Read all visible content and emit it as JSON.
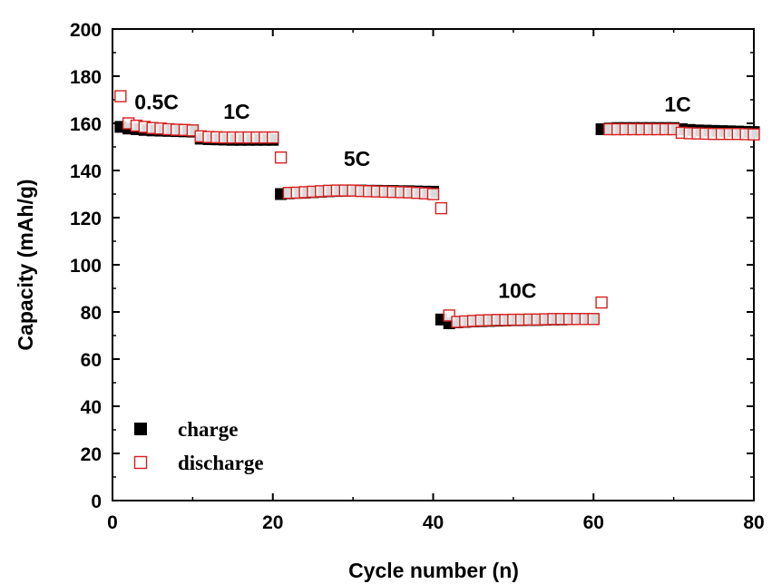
{
  "chart_data": {
    "type": "scatter",
    "xlabel": "Cycle number (n)",
    "ylabel": "Capacity (mAh/g)",
    "xlim": [
      0,
      80
    ],
    "ylim": [
      0,
      200
    ],
    "x_ticks": [
      0,
      20,
      40,
      60,
      80
    ],
    "y_ticks": [
      0,
      20,
      40,
      60,
      80,
      100,
      120,
      140,
      160,
      180,
      200
    ],
    "grid": false,
    "legend_position": "bottom-left",
    "annotations": [
      {
        "text": "0.5C",
        "x": 5.5,
        "y": 166
      },
      {
        "text": "1C",
        "x": 15.5,
        "y": 162
      },
      {
        "text": "5C",
        "x": 30.5,
        "y": 142
      },
      {
        "text": "10C",
        "x": 50.5,
        "y": 86
      },
      {
        "text": "1C",
        "x": 70.5,
        "y": 165
      }
    ],
    "series": [
      {
        "name": "charge",
        "marker": "filled-square",
        "color": "#000000",
        "x": [
          1,
          2,
          3,
          4,
          5,
          6,
          7,
          8,
          9,
          10,
          11,
          12,
          13,
          14,
          15,
          16,
          17,
          18,
          19,
          20,
          21,
          22,
          23,
          24,
          25,
          26,
          27,
          28,
          29,
          30,
          31,
          32,
          33,
          34,
          35,
          36,
          37,
          38,
          39,
          40,
          41,
          42,
          43,
          44,
          45,
          46,
          47,
          48,
          49,
          50,
          51,
          52,
          53,
          54,
          55,
          56,
          57,
          58,
          59,
          60,
          61,
          62,
          63,
          64,
          65,
          66,
          67,
          68,
          69,
          70,
          71,
          72,
          73,
          74,
          75,
          76,
          77,
          78,
          79,
          80
        ],
        "values": [
          158.5,
          157.8,
          157.5,
          157.2,
          157,
          156.9,
          156.8,
          156.7,
          156.6,
          156.5,
          153.5,
          153.3,
          153.2,
          153.1,
          153,
          153,
          153,
          153,
          153,
          153,
          130,
          130.3,
          130.5,
          130.6,
          130.8,
          131,
          131.2,
          131.3,
          131.4,
          131.5,
          131.5,
          131.4,
          131.4,
          131.3,
          131.3,
          131.2,
          131.2,
          131.1,
          131,
          131,
          76.8,
          75.2,
          75.6,
          75.8,
          76,
          76.1,
          76.2,
          76.3,
          76.4,
          76.5,
          76.5,
          76.6,
          76.6,
          76.7,
          76.8,
          76.8,
          76.9,
          77,
          77,
          77,
          157.5,
          157.8,
          158,
          158,
          158,
          158,
          158,
          158,
          158,
          158,
          157.5,
          157.2,
          157,
          156.9,
          156.8,
          156.7,
          156.6,
          156.5,
          156.4,
          156.3
        ]
      },
      {
        "name": "discharge",
        "marker": "open-square",
        "color": "#d62020",
        "x": [
          1,
          2,
          3,
          4,
          5,
          6,
          7,
          8,
          9,
          10,
          11,
          12,
          13,
          14,
          15,
          16,
          17,
          18,
          19,
          20,
          21,
          22,
          23,
          24,
          25,
          26,
          27,
          28,
          29,
          30,
          31,
          32,
          33,
          34,
          35,
          36,
          37,
          38,
          39,
          40,
          41,
          42,
          43,
          44,
          45,
          46,
          47,
          48,
          49,
          50,
          51,
          52,
          53,
          54,
          55,
          56,
          57,
          58,
          59,
          60,
          61,
          62,
          63,
          64,
          65,
          66,
          67,
          68,
          69,
          70,
          71,
          72,
          73,
          74,
          75,
          76,
          77,
          78,
          79,
          80
        ],
        "values": [
          171.5,
          160,
          159,
          158.5,
          158,
          157.8,
          157.5,
          157.3,
          157.2,
          157,
          154.5,
          154.2,
          154.1,
          154,
          154,
          154,
          154,
          154,
          154,
          154,
          145.5,
          130.5,
          130.6,
          130.8,
          131,
          131.2,
          131.4,
          131.5,
          131.5,
          131.5,
          131.3,
          131.2,
          131.1,
          131,
          130.9,
          130.8,
          130.7,
          130.5,
          130.3,
          130,
          124,
          78.5,
          75.8,
          76,
          76.2,
          76.4,
          76.5,
          76.6,
          76.6,
          76.7,
          76.7,
          76.8,
          76.8,
          76.9,
          77,
          77,
          77,
          77,
          77,
          77,
          84,
          157.5,
          157.5,
          157.5,
          157.5,
          157.5,
          157.5,
          157.5,
          157.5,
          157.5,
          156,
          155.8,
          155.7,
          155.6,
          155.5,
          155.5,
          155.5,
          155.5,
          155.4,
          155.3
        ]
      }
    ]
  }
}
